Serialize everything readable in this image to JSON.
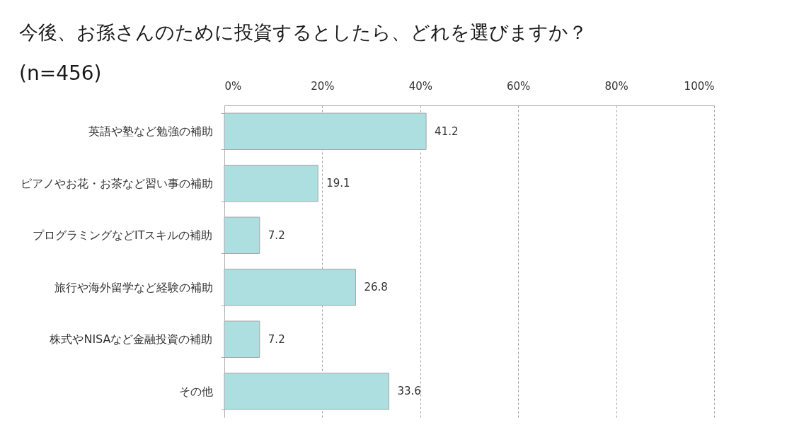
{
  "chart_data": {
    "type": "bar",
    "orientation": "horizontal",
    "title": "今後、お孫さんのために投資するとしたら、どれを選びますか？",
    "subtitle": "(n=456)",
    "categories": [
      "英語や塾など勉強の補助",
      "ピアノやお花・お茶など習い事の補助",
      "プログラミングなどITスキルの補助",
      "旅行や海外留学など経験の補助",
      "株式やNISAなど金融投資の補助",
      "その他"
    ],
    "values": [
      41.2,
      19.1,
      7.2,
      26.8,
      7.2,
      33.6
    ],
    "color": "#addfe1",
    "xlim": [
      0,
      100
    ],
    "xticks": [
      {
        "value": 0,
        "label": "0%"
      },
      {
        "value": 20,
        "label": "20%"
      },
      {
        "value": 40,
        "label": "40%"
      },
      {
        "value": 60,
        "label": "60%"
      },
      {
        "value": 80,
        "label": "80%"
      },
      {
        "value": 100,
        "label": "100%"
      }
    ],
    "grid": "x",
    "data_labels": true
  }
}
